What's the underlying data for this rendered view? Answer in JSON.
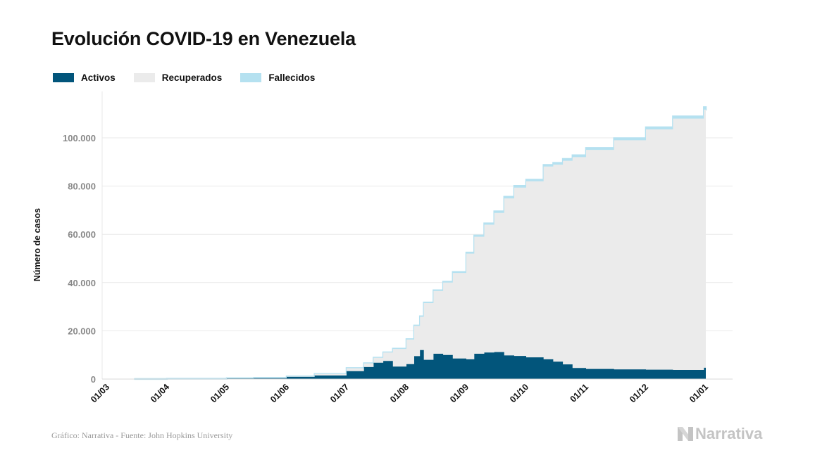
{
  "title": "Evolución COVID-19 en Venezuela",
  "source": "Gráfico: Narrativa - Fuente: John Hopkins University",
  "logo": "Narrativa",
  "colors": {
    "activos": "#02557b",
    "recuperados": "#ebebeb",
    "fallecidos": "#b5e1f0",
    "grid": "#e9e9e9"
  },
  "chart_data": {
    "type": "area",
    "stacked": true,
    "ylabel": "Número de casos",
    "ylim": [
      0,
      115000
    ],
    "y_ticks": [
      0,
      20000,
      40000,
      60000,
      80000,
      100000
    ],
    "y_tick_labels": [
      "0",
      "20.000",
      "40.000",
      "60.000",
      "80.000",
      "100.000"
    ],
    "x_tick_labels": [
      "01/03",
      "01/04",
      "01/05",
      "01/06",
      "01/07",
      "01/08",
      "01/09",
      "01/10",
      "01/11",
      "01/12",
      "01/01"
    ],
    "legend": [
      "Activos",
      "Recuperados",
      "Fallecidos"
    ],
    "legend_position": "top-left",
    "grid": true,
    "series": [
      {
        "name": "Activos",
        "x": [
          "15/03",
          "01/04",
          "01/05",
          "15/05",
          "01/06",
          "15/06",
          "01/07",
          "10/07",
          "15/07",
          "20/07",
          "25/07",
          "01/08",
          "05/08",
          "08/08",
          "10/08",
          "15/08",
          "20/08",
          "25/08",
          "01/09",
          "05/09",
          "10/09",
          "15/09",
          "20/09",
          "25/09",
          "01/10",
          "10/10",
          "15/10",
          "20/10",
          "25/10",
          "01/11",
          "15/11",
          "01/12",
          "15/12",
          "31/12"
        ],
        "values": [
          20,
          150,
          250,
          350,
          900,
          1500,
          3300,
          5000,
          6800,
          7500,
          5200,
          6200,
          9500,
          12000,
          8000,
          10500,
          10000,
          8500,
          8200,
          10500,
          11000,
          11200,
          9800,
          9600,
          9000,
          8200,
          7200,
          6100,
          4600,
          4200,
          4000,
          3900,
          3800,
          4700
        ]
      },
      {
        "name": "Recuperados",
        "x": [
          "15/03",
          "01/04",
          "01/05",
          "15/05",
          "01/06",
          "15/06",
          "01/07",
          "10/07",
          "15/07",
          "20/07",
          "25/07",
          "01/08",
          "05/08",
          "08/08",
          "10/08",
          "15/08",
          "20/08",
          "25/08",
          "01/09",
          "05/09",
          "10/09",
          "15/09",
          "20/09",
          "25/09",
          "01/10",
          "10/10",
          "15/10",
          "20/10",
          "25/10",
          "01/11",
          "15/11",
          "01/12",
          "15/12",
          "31/12"
        ],
        "values": [
          0,
          0,
          100,
          150,
          200,
          600,
          1200,
          1500,
          2000,
          3500,
          7300,
          10200,
          12500,
          13800,
          23500,
          26000,
          30000,
          35500,
          43800,
          48500,
          53000,
          57700,
          65100,
          69800,
          73000,
          79900,
          81700,
          84400,
          87400,
          90800,
          95000,
          99600,
          104200,
          107000
        ]
      },
      {
        "name": "Fallecidos",
        "x": [
          "15/03",
          "01/04",
          "01/05",
          "15/05",
          "01/06",
          "15/06",
          "01/07",
          "10/07",
          "15/07",
          "20/07",
          "25/07",
          "01/08",
          "05/08",
          "08/08",
          "10/08",
          "15/08",
          "20/08",
          "25/08",
          "01/09",
          "05/09",
          "10/09",
          "15/09",
          "20/09",
          "25/09",
          "01/10",
          "10/10",
          "15/10",
          "20/10",
          "25/10",
          "01/11",
          "15/11",
          "01/12",
          "15/12",
          "31/12"
        ],
        "values": [
          0,
          5,
          10,
          10,
          14,
          20,
          50,
          60,
          75,
          90,
          110,
          160,
          200,
          230,
          250,
          300,
          350,
          400,
          450,
          500,
          550,
          620,
          680,
          700,
          640,
          680,
          720,
          740,
          780,
          800,
          850,
          880,
          900,
          1000
        ]
      }
    ]
  }
}
